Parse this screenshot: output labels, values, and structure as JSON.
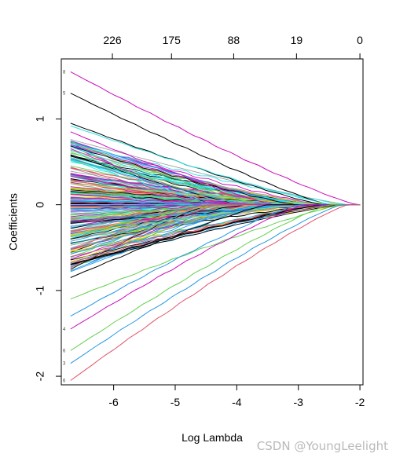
{
  "chart_data": {
    "type": "line",
    "xlabel": "Log Lambda",
    "ylabel": "Coefficients",
    "xlim": [
      -6.85,
      -1.95
    ],
    "ylim": [
      -2.1,
      1.7
    ],
    "x_ticks": [
      -6,
      -5,
      -4,
      -3,
      -2
    ],
    "y_ticks": [
      -2,
      -1,
      0,
      1
    ],
    "top_axis": {
      "positions": [
        -6.02,
        -5.06,
        -4.05,
        -3.03,
        -2.0
      ],
      "labels": [
        "226",
        "175",
        "88",
        "19",
        "0"
      ]
    },
    "x_start": -6.7,
    "x_end": -2.0,
    "colors": [
      "#000000",
      "#DF536B",
      "#61D04F",
      "#2297E6",
      "#28E2E5",
      "#CD0BBC",
      "#F5C710",
      "#9E9E9E"
    ],
    "highlighted_series": [
      {
        "start": 1.55,
        "zero_at": -2.05,
        "color": "#CD0BBC"
      },
      {
        "start": 1.3,
        "zero_at": -2.5,
        "color": "#000000"
      },
      {
        "start": 0.95,
        "zero_at": -2.6,
        "color": "#000000"
      },
      {
        "start": 0.92,
        "zero_at": -2.45,
        "color": "#28E2E5"
      },
      {
        "start": 0.85,
        "zero_at": -3.4,
        "color": "#CD0BBC"
      },
      {
        "start": -0.7,
        "zero_at": -2.6,
        "color": "#000000"
      },
      {
        "start": -0.85,
        "zero_at": -3.5,
        "color": "#000000"
      },
      {
        "start": -1.1,
        "zero_at": -2.3,
        "color": "#61D04F"
      },
      {
        "start": -1.3,
        "zero_at": -3.0,
        "color": "#2297E6"
      },
      {
        "start": -1.45,
        "zero_at": -2.9,
        "color": "#CD0BBC"
      },
      {
        "start": -1.7,
        "zero_at": -2.5,
        "color": "#61D04F"
      },
      {
        "start": -1.85,
        "zero_at": -2.3,
        "color": "#2297E6"
      },
      {
        "start": -2.05,
        "zero_at": -2.2,
        "color": "#DF536B"
      }
    ],
    "bulk_series_count": 240,
    "bulk_start_range": [
      -0.85,
      0.9
    ],
    "left_labels": [
      "8",
      "5",
      "6",
      "3",
      "6",
      "4"
    ],
    "grid": false
  },
  "watermark": "CSDN @YoungLeelight"
}
